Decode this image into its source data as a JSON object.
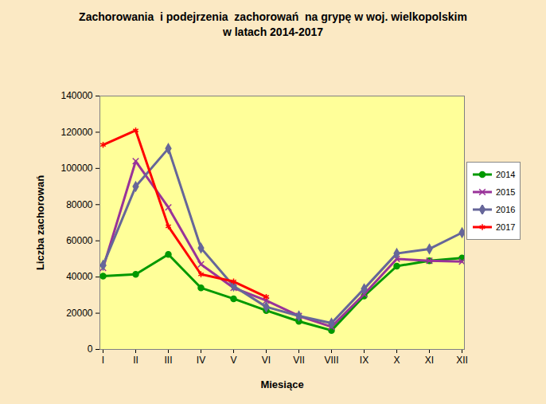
{
  "chart_data": {
    "type": "line",
    "title": [
      "Zachorowania  i podejrzenia  zachorowań  na grypę w woj. wielkopolskim",
      "w latach 2014-2017"
    ],
    "x_label": "Miesiące",
    "y_label": "Liczba zachorowań",
    "categories": [
      "I",
      "II",
      "III",
      "IV",
      "V",
      "VI",
      "VII",
      "VIII",
      "IX",
      "X",
      "XI",
      "XII"
    ],
    "series": [
      {
        "name": "2014",
        "color": "#009900",
        "marker": "circle",
        "values": [
          40500,
          41500,
          52500,
          34000,
          28000,
          21500,
          15500,
          10500,
          29500,
          46000,
          49000,
          50500
        ]
      },
      {
        "name": "2015",
        "color": "#993399",
        "marker": "times",
        "values": [
          45000,
          104000,
          78500,
          47000,
          34000,
          27000,
          18500,
          12500,
          30500,
          50000,
          49000,
          48500
        ]
      },
      {
        "name": "2016",
        "color": "#666699",
        "marker": "diamond",
        "values": [
          46500,
          90000,
          111000,
          56000,
          35000,
          23500,
          18500,
          14500,
          33500,
          53000,
          55500,
          64500
        ]
      },
      {
        "name": "2017",
        "color": "#ff0000",
        "marker": "asterisk",
        "values": [
          113000,
          121000,
          68000,
          41500,
          37500,
          29000,
          null,
          null,
          null,
          null,
          null,
          null
        ]
      }
    ],
    "ylim": [
      0,
      140000
    ],
    "yticks": [
      0,
      20000,
      40000,
      60000,
      80000,
      100000,
      120000,
      140000
    ],
    "grid": false,
    "legend": "right"
  }
}
